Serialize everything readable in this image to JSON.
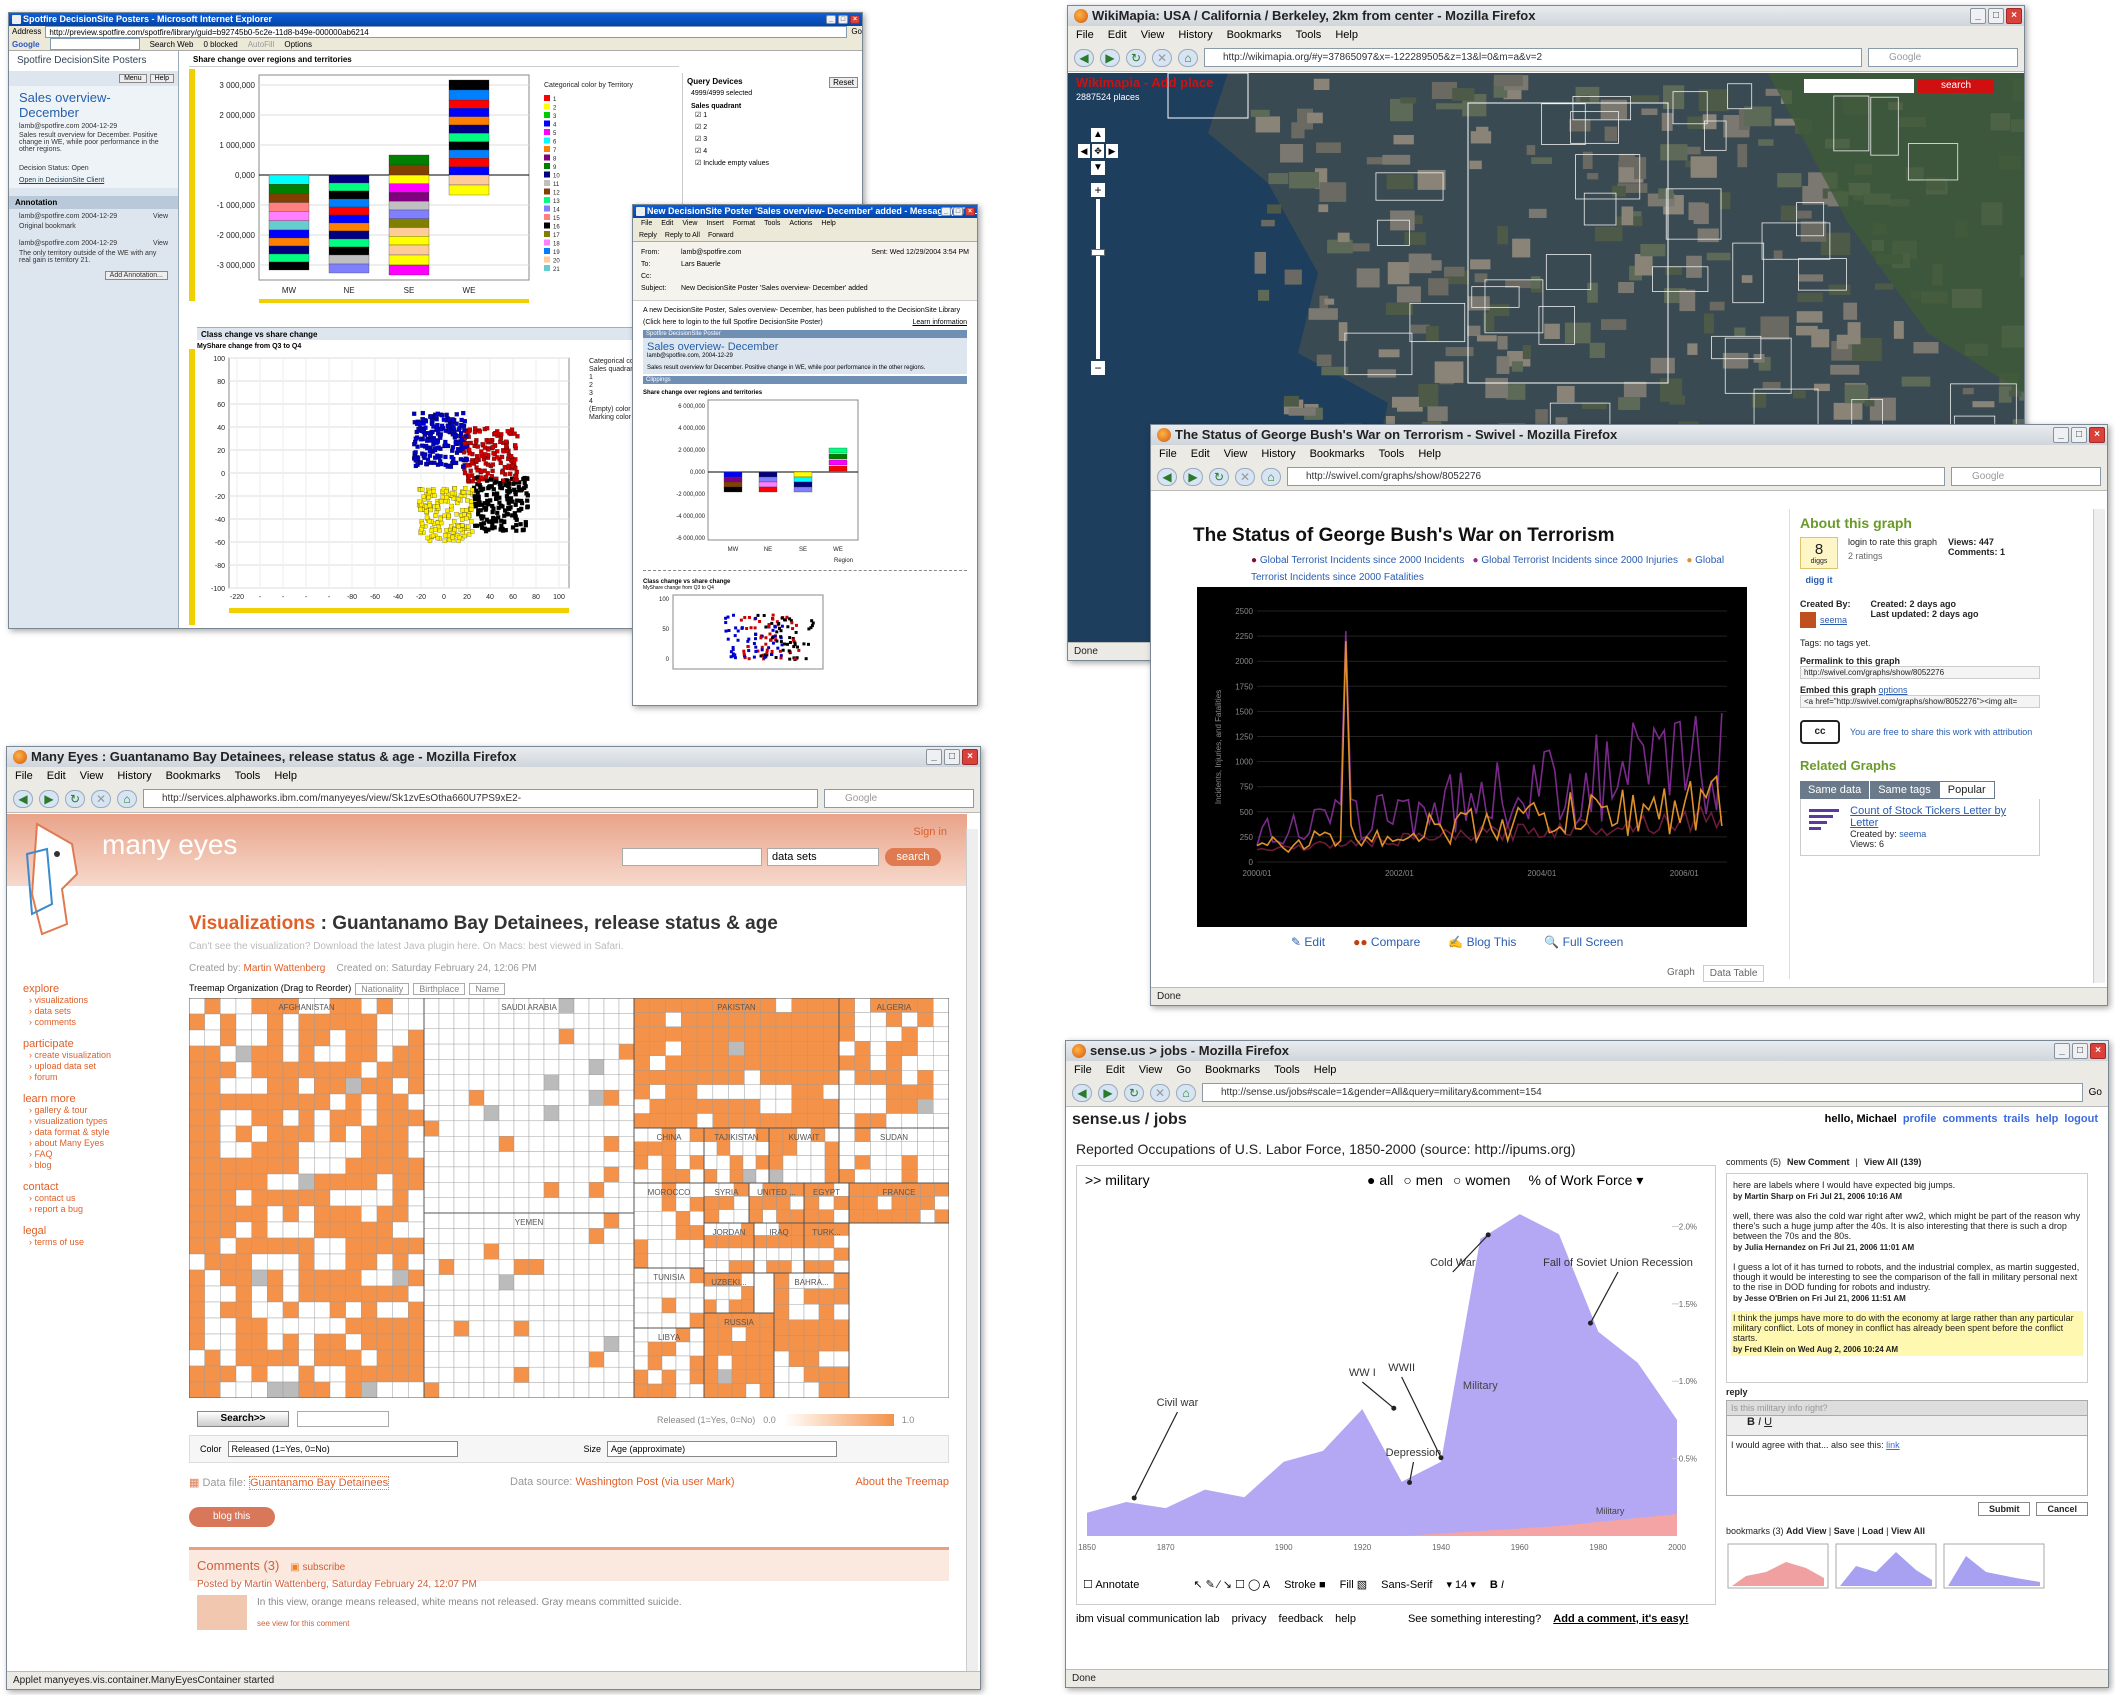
{
  "spotfire": {
    "title": "Spotfire DecisionSite Posters - Microsoft Internet Explorer",
    "address_label": "Address",
    "address": "http://preview.spotfire.com/spotfire/library/guid=b92745b0-5c2e-11d8-b49e-000000ab6214",
    "go": "Go",
    "google": "Google",
    "toolbar_items": [
      "Search Web",
      "0 blocked",
      "AutoFill",
      "Options"
    ],
    "side_title": "Spotfire DecisionSite Posters",
    "side_buttons": [
      "Menu",
      "Help"
    ],
    "poster_title": "Sales overview-December",
    "poster_author": "lamb@spotfire.com 2004-12-29",
    "poster_desc": "Sales result overview for December. Positive change in WE, while poor performance in the other regions.",
    "decision_status": "Decision Status: Open",
    "open_client": "Open in DecisionSite Client",
    "annotation_header": "Annotation",
    "annotations": [
      {
        "author": "lamb@spotfire.com 2004-12-29",
        "view": "View",
        "text": "Original bookmark"
      },
      {
        "author": "lamb@spotfire.com 2004-12-29",
        "view": "View",
        "text": "The only territory outside of the WE with any real gain is territory 21."
      }
    ],
    "add_annotation": "Add Annotation...",
    "chart1_title": "Share change over regions and territories",
    "chart1_legend_title": "Categorical color by Territory",
    "chart1_xlabel": "Region",
    "chart1_yticks": [
      "3 000,000",
      "2 000,000",
      "1 000,000",
      "0,000",
      "-1 000,000",
      "-2 000,000",
      "-3 000,000"
    ],
    "chart1_xticks": [
      "MW",
      "NE",
      "SE",
      "WE"
    ],
    "legend_items": [
      "1",
      "2",
      "3",
      "4",
      "5",
      "6",
      "7",
      "8",
      "9",
      "10",
      "11",
      "12",
      "13",
      "14",
      "15",
      "16",
      "17",
      "18",
      "19",
      "20",
      "21"
    ],
    "chart2_tab": "Class change vs share change",
    "chart2_title": "MyShare change from Q3 to Q4",
    "chart2_legend": [
      "Categorical color b",
      "Sales quadrant",
      "1",
      "2",
      "3",
      "4",
      "(Empty) color",
      "Marking color"
    ],
    "chart2_yticks": [
      "100",
      "80",
      "60",
      "40",
      "20",
      "0",
      "-20",
      "-40",
      "-60",
      "-80",
      "-100"
    ],
    "chart2_xticks": [
      "-220",
      "-",
      "-",
      "-",
      "-",
      "-80",
      "-60",
      "-40",
      "-20",
      "0",
      "20",
      "40",
      "60",
      "80",
      "100"
    ],
    "query_title": "Query Devices",
    "reset": "Reset",
    "selected": "4999/4999 selected",
    "quadrant_label": "Sales quadrant",
    "quadrants": [
      "1",
      "2",
      "3",
      "4"
    ],
    "include_empty": "Include empty values"
  },
  "message": {
    "title": "New DecisionSite Poster 'Sales overview- December' added - Message (HTML)",
    "menu": [
      "File",
      "Edit",
      "View",
      "Insert",
      "Format",
      "Tools",
      "Actions",
      "Help"
    ],
    "toolbar": [
      "Reply",
      "Reply to All",
      "Forward"
    ],
    "from_label": "From:",
    "from": "lamb@spotfire.com",
    "sent_label": "Sent:",
    "sent": "Wed 12/29/2004 3:54 PM",
    "to_label": "To:",
    "to": "Lars Bauerle",
    "cc_label": "Cc:",
    "subject_label": "Subject:",
    "subject": "New DecisionSite Poster 'Sales overview- December' added",
    "body1": "A new DecisionSite Poster, Sales overview- December, has been published to the DecisionSite Library",
    "body2": "(Click here to login to the full Spotfire DecisionSite Poster)",
    "learn": "Learn information",
    "poster_bar": "Spotfire DecisionSite Poster",
    "poster_title": "Sales overview- December",
    "poster_author": "lamb@spotfire.com, 2004-12-29",
    "poster_desc": "Sales result overview for December. Positive change in WE, while poor performance in the other regions.",
    "clippings": "Clippings",
    "clip1": "Share change over regions and territories",
    "clip_yticks": [
      "6 000,000",
      "4 000,000",
      "2 000,000",
      "0,000",
      "-2 000,000",
      "-4 000,000",
      "-6 000,000"
    ],
    "clip_xticks": [
      "MW",
      "NE",
      "SE",
      "WE"
    ],
    "clip_xlabel": "Region",
    "clip2": "Class change vs share change",
    "clip2_sub": "MyShare change from Q3 to Q4",
    "clip2_yticks": [
      "100",
      "50",
      "0"
    ]
  },
  "wikimapia": {
    "title": "WikiMapia: USA / California / Berkeley, 2km from center - Mozilla Firefox",
    "menu": [
      "File",
      "Edit",
      "View",
      "History",
      "Bookmarks",
      "Tools",
      "Help"
    ],
    "url": "http://wikimapia.org/#y=37865097&x=-122289505&z=13&l=0&m=a&v=2",
    "search_placeholder": "Google",
    "map_header": "Wikimapia - Add place",
    "places": "2887524 places",
    "search_btn": "search",
    "status": "Done"
  },
  "swivel": {
    "title": "The Status of George Bush's War on Terrorism - Swivel - Mozilla Firefox",
    "menu": [
      "File",
      "Edit",
      "View",
      "History",
      "Bookmarks",
      "Tools",
      "Help"
    ],
    "url": "http://swivel.com/graphs/show/8052276",
    "search_placeholder": "Google",
    "chart_title": "The Status of George Bush's War on Terrorism",
    "legend": [
      "Global Terrorist Incidents since 2000 Incidents",
      "Global Terrorist Incidents since 2000 Injuries",
      "Global Terrorist Incidents since 2000 Fatalities"
    ],
    "ylabel": "Incidents, Injuries, and Fatalities",
    "actions": [
      "Edit",
      "Compare",
      "Blog This",
      "Full Screen"
    ],
    "tabs": [
      "Graph",
      "Data Table"
    ],
    "about": "About this graph",
    "diggs": "8",
    "diggs_label": "diggs",
    "digg_it": "digg it",
    "login_text": "login to rate this graph",
    "ratings": "2 ratings",
    "views": "Views: 447",
    "comments": "Comments: 1",
    "created_by": "Created By:",
    "creator": "seema",
    "created": "Created: 2 days ago",
    "updated": "Last updated: 2 days ago",
    "tags": "Tags: no tags yet.",
    "permalink_label": "Permalink to this graph",
    "permalink": "http://swivel.com/graphs/show/8052276",
    "embed_label": "Embed this graph",
    "embed_options": "options",
    "embed": "<a href=\"http://swivel.com/graphs/show/8052276\"><img alt=",
    "cc_text": "You are free to share this work with attribution",
    "related": "Related Graphs",
    "related_tabs": [
      "Same data",
      "Same tags",
      "Popular"
    ],
    "related_item": "Count of Stock Tickers Letter by Letter",
    "related_created": "Created by:",
    "related_creator": "seema",
    "related_views": "Views: 6",
    "status": "Done"
  },
  "manyeyes": {
    "title": "Many Eyes : Guantanamo Bay Detainees, release status & age - Mozilla Firefox",
    "menu": [
      "File",
      "Edit",
      "View",
      "History",
      "Bookmarks",
      "Tools",
      "Help"
    ],
    "url": "http://services.alphaworks.ibm.com/manyeyes/view/Sk1zvEsOtha660U7PS9xE2-",
    "search_placeholder": "Google",
    "logo": "many eyes",
    "signin": "Sign in",
    "search_select": "data sets",
    "search_btn": "search",
    "nav": [
      {
        "h": "explore",
        "items": [
          "visualizations",
          "data sets",
          "comments"
        ]
      },
      {
        "h": "participate",
        "items": [
          "create visualization",
          "upload data set",
          "forum"
        ]
      },
      {
        "h": "learn more",
        "items": [
          "gallery & tour",
          "visualization types",
          "data format & style",
          "about Many Eyes",
          "FAQ",
          "blog"
        ]
      },
      {
        "h": "contact",
        "items": [
          "contact us",
          "report a bug"
        ]
      },
      {
        "h": "legal",
        "items": [
          "terms of use"
        ]
      }
    ],
    "heading_prefix": "Visualizations",
    "heading": "Guantanamo Bay Detainees, release status & age",
    "java_note": "Can't see the visualization? Download the latest Java plugin here. On Macs: best viewed in Safari.",
    "created_by": "Created by:",
    "creator": "Martin Wattenberg",
    "created_on": "Created on: Saturday February 24, 12:06 PM",
    "treemap_org": "Treemap Organization (Drag to Reorder)",
    "org_chips": [
      "Nationality",
      "Birthplace",
      "Name"
    ],
    "countries": [
      "AFGHANISTAN",
      "SAUDI ARABIA",
      "PAKISTAN",
      "ALGERIA",
      "CHINA",
      "TAJIKISTAN",
      "KUWAIT",
      "SUDAN",
      "YEMEN",
      "MOROCCO",
      "SYRIA",
      "UNITED ...",
      "EGYPT",
      "FRANCE",
      "JORDAN",
      "IRAQ",
      "TURK...",
      "TUNISIA",
      "UZBEKI...",
      "LIBYA",
      "RUSSIA",
      "BAHRA..."
    ],
    "search_btn2": "Search>>",
    "released_label": "Released (1=Yes, 0=No)",
    "min": "0.0",
    "max": "1.0",
    "color_label": "Color",
    "color_value": "Released (1=Yes, 0=No)",
    "size_label": "Size",
    "size_value": "Age (approximate)",
    "data_file_label": "Data file:",
    "data_file": "Guantanamo Bay Detainees",
    "data_source_label": "Data source:",
    "data_source": "Washington Post (via user Mark)",
    "about_treemap": "About the Treemap",
    "blog_this": "blog this",
    "comments_h": "Comments (3)",
    "subscribe": "subscribe",
    "posted": "Posted by Martin Wattenberg, Saturday February 24, 12:07 PM",
    "comment_text": "In this view, orange means released, white means not released. Gray means committed suicide.",
    "view_comment": "see view for this comment",
    "status": "Applet manyeyes.vis.container.ManyEyesContainer started"
  },
  "sense": {
    "title": "sense.us > jobs - Mozilla Firefox",
    "menu": [
      "File",
      "Edit",
      "View",
      "Go",
      "Bookmarks",
      "Tools",
      "Help"
    ],
    "url": "http://sense.us/jobs#scale=1&gender=All&query=military&comment=154",
    "go": "Go",
    "site": "sense.us / jobs",
    "hello": "hello, Michael",
    "links": [
      "profile",
      "comments",
      "trails",
      "help",
      "logout"
    ],
    "chart_title": "Reported Occupations of U.S. Labor Force, 1850-2000 (source: http://ipums.org)",
    "query": ">> military",
    "radios": [
      "all",
      "men",
      "women"
    ],
    "measure": "% of Work Force",
    "annotations": [
      "Cold War",
      "Fall of Soviet Union Recession",
      "WW I",
      "WWII",
      "Civil war",
      "Depression"
    ],
    "series_labels": [
      "Military",
      "Military"
    ],
    "yticks": [
      "2.0%",
      "1.5%",
      "1.0%",
      "0.5%"
    ],
    "xticks": [
      "1850",
      "1870",
      "1900",
      "1920",
      "1940",
      "1960",
      "1980",
      "2000"
    ],
    "tools": [
      "Annotate",
      "Stroke",
      "Fill",
      "Sans-Serif",
      "14"
    ],
    "footer": [
      "ibm visual communication lab",
      "privacy",
      "feedback",
      "help"
    ],
    "footer_cta": "See something interesting?",
    "footer_link": "Add a comment, it's easy!",
    "comments_head": "comments (5)",
    "new_comment": "New Comment",
    "view_all": "View All (139)",
    "comments": [
      {
        "text": "here are labels where I would have expected big jumps.",
        "by": "by Martin Sharp on Fri Jul 21, 2006 10:16 AM"
      },
      {
        "text": "well, there was also the cold war right after ww2, which might be part of the reason why there's such a huge jump after the 40s. It is also interesting that there is such a drop between the 70s and the 80s.",
        "by": "by Julia Hernandez on Fri Jul 21, 2006 11:01 AM"
      },
      {
        "text": "I guess a lot of it has turned to robots, and the industrial complex, as martin suggested, though it would be interesting to see the comparison of the fall in military personal next to the rise in DOD funding for robots and industry.",
        "by": "by Jesse O'Brien on Fri Jul 21, 2006 11:51 AM"
      },
      {
        "text": "I think the jumps have more to do with the economy at large rather than any particular military conflict. Lots of money in conflict has already been spent before the conflict starts.",
        "by": "by Fred Klein on Wed Aug 2, 2006 10:24 AM"
      }
    ],
    "reply": "reply",
    "reply_subject": "Is this military info right?",
    "reply_text": "I would agree with that... also see this:",
    "reply_link": "link",
    "submit": "Submit",
    "cancel": "Cancel",
    "bookmarks": "bookmarks (3)",
    "bm_links": [
      "Add View",
      "Save",
      "Load",
      "View All"
    ],
    "status": "Done"
  }
}
